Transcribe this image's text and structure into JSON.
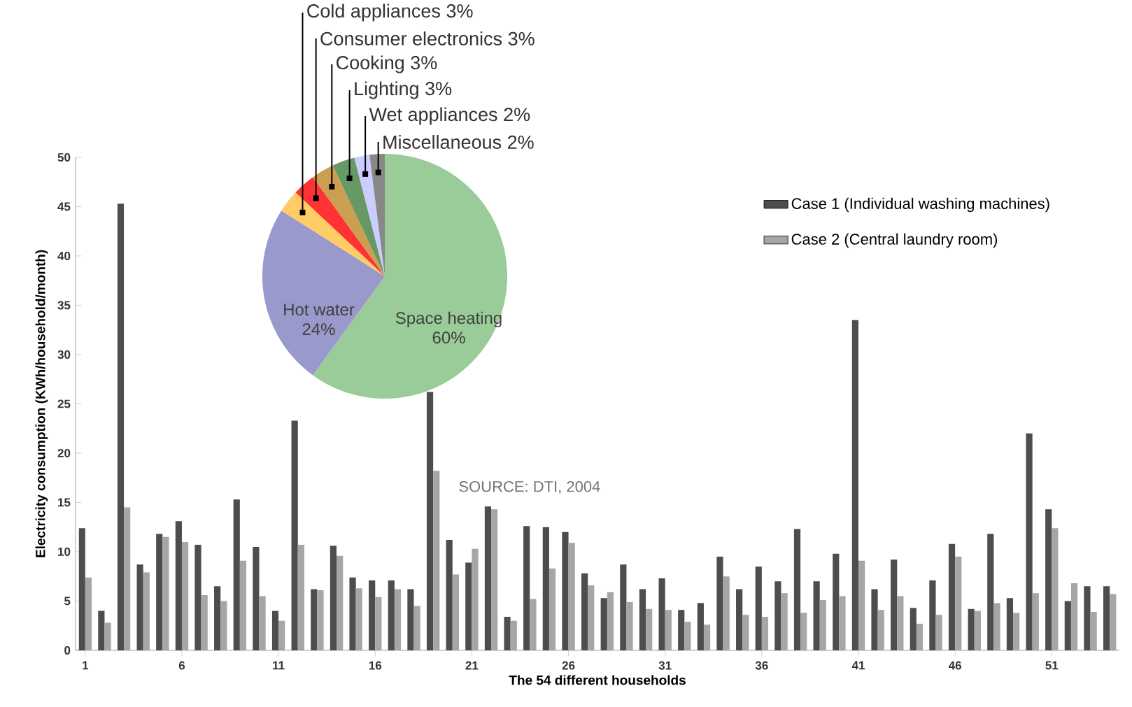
{
  "chart_data": [
    {
      "type": "bar",
      "xlabel": "The 54 different households",
      "ylabel": "Electricity consumption (KWh/household/month)",
      "categories": [
        "1",
        null,
        null,
        null,
        null,
        "6",
        null,
        null,
        null,
        null,
        "11",
        null,
        null,
        null,
        null,
        "16",
        null,
        null,
        null,
        null,
        "21",
        null,
        null,
        null,
        null,
        "26",
        null,
        null,
        null,
        null,
        "31",
        null,
        null,
        null,
        null,
        "36",
        null,
        null,
        null,
        null,
        "41",
        null,
        null,
        null,
        null,
        "46",
        null,
        null,
        null,
        null,
        "51",
        null,
        null,
        null
      ],
      "series": [
        {
          "name": "Case 1 (Individual washing machines)",
          "color": "#4d4d4d",
          "values": [
            12.4,
            4.0,
            45.3,
            8.7,
            11.8,
            13.1,
            10.7,
            6.5,
            15.3,
            10.5,
            4.0,
            23.3,
            6.2,
            10.6,
            7.4,
            7.1,
            7.1,
            6.2,
            26.2,
            11.2,
            8.9,
            14.6,
            3.4,
            12.6,
            12.5,
            12.0,
            7.8,
            5.3,
            8.7,
            6.2,
            7.3,
            4.1,
            4.8,
            9.5,
            6.2,
            8.5,
            7.0,
            12.3,
            7.0,
            9.8,
            33.5,
            6.2,
            9.2,
            4.3,
            7.1,
            10.8,
            4.2,
            11.8,
            5.3,
            22.0,
            14.3,
            5.0,
            6.5,
            6.5
          ]
        },
        {
          "name": "Case  2 (Central laundry room)",
          "color": "#a6a6a6",
          "values": [
            7.4,
            2.8,
            14.5,
            7.9,
            11.5,
            11.0,
            5.6,
            5.0,
            9.1,
            5.5,
            3.0,
            10.7,
            6.1,
            9.6,
            6.3,
            5.4,
            6.2,
            4.5,
            18.2,
            7.7,
            10.3,
            14.3,
            3.0,
            5.2,
            8.3,
            10.9,
            6.6,
            5.9,
            4.9,
            4.2,
            4.1,
            2.9,
            2.6,
            7.5,
            3.6,
            3.4,
            5.8,
            3.8,
            5.1,
            5.5,
            9.1,
            4.1,
            5.5,
            2.7,
            3.6,
            9.5,
            4.0,
            4.8,
            3.8,
            5.8,
            12.4,
            6.8,
            3.9,
            5.7
          ]
        }
      ],
      "ylim": [
        0,
        50
      ],
      "yticks": [
        0,
        5,
        10,
        15,
        20,
        25,
        30,
        35,
        40,
        45,
        50
      ],
      "legend": "top right"
    },
    {
      "type": "pie",
      "categories": [
        "Space heating",
        "Hot water",
        "Cold appliances",
        "Consumer electronics",
        "Cooking",
        "Lighting",
        "Wet appliances",
        "Miscellaneous"
      ],
      "values": [
        60,
        24,
        3,
        3,
        3,
        3,
        2,
        2
      ],
      "value_labels": [
        "60%",
        "24%",
        "3%",
        "3%",
        "3%",
        "3%",
        "2%",
        "2%"
      ],
      "colors": [
        "#99cc99",
        "#9999cc",
        "#ffcc66",
        "#ff3333",
        "#cc9f50",
        "#669966",
        "#ccccff",
        "#888888"
      ],
      "annotations": [
        "SOURCE: DTI, 2004"
      ]
    }
  ]
}
